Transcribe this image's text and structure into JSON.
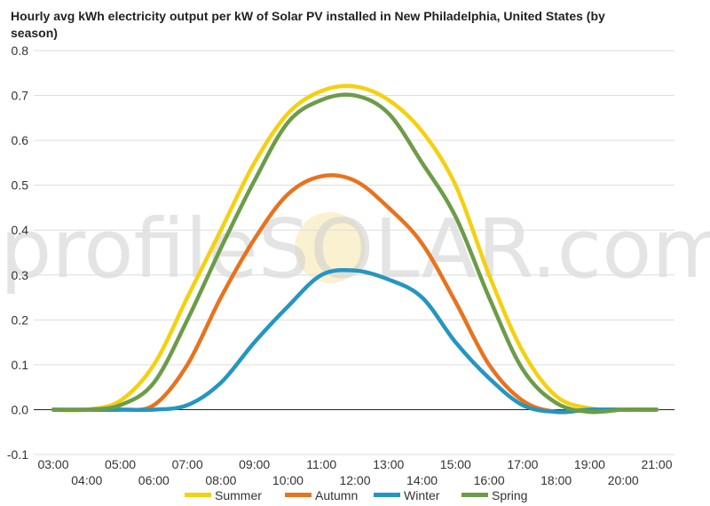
{
  "chart_data": {
    "type": "line",
    "title_line1": "Hourly avg kWh electricity output per kW of Solar PV installed in New Philadelphia, United States (by",
    "title_line2": "season)",
    "x": [
      "03:00",
      "04:00",
      "05:00",
      "06:00",
      "07:00",
      "08:00",
      "09:00",
      "10:00",
      "11:00",
      "12:00",
      "13:00",
      "14:00",
      "15:00",
      "16:00",
      "17:00",
      "18:00",
      "19:00",
      "20:00",
      "21:00"
    ],
    "ylim": [
      -0.1,
      0.8
    ],
    "yticks": [
      "0.8",
      "0.7",
      "0.6",
      "0.5",
      "0.4",
      "0.3",
      "0.2",
      "0.1",
      "0.0",
      "-0.1"
    ],
    "series": [
      {
        "name": "Summer",
        "color": "#f5d00f",
        "values": [
          0,
          0,
          0.02,
          0.1,
          0.25,
          0.4,
          0.55,
          0.66,
          0.71,
          0.72,
          0.69,
          0.62,
          0.5,
          0.3,
          0.13,
          0.03,
          0.003,
          0,
          0
        ]
      },
      {
        "name": "Autumn",
        "color": "#e8731f",
        "values": [
          0,
          0,
          0,
          0.01,
          0.1,
          0.25,
          0.38,
          0.48,
          0.52,
          0.51,
          0.45,
          0.37,
          0.24,
          0.1,
          0.02,
          -0.005,
          0,
          0,
          0
        ]
      },
      {
        "name": "Winter",
        "color": "#2596c1",
        "values": [
          0,
          0,
          0,
          0,
          0.01,
          0.06,
          0.15,
          0.23,
          0.3,
          0.31,
          0.29,
          0.25,
          0.15,
          0.07,
          0.01,
          -0.005,
          0,
          0,
          0
        ]
      },
      {
        "name": "Spring",
        "color": "#6c9c48",
        "values": [
          0,
          0,
          0.01,
          0.06,
          0.2,
          0.36,
          0.51,
          0.64,
          0.69,
          0.7,
          0.66,
          0.55,
          0.43,
          0.25,
          0.09,
          0.015,
          -0.005,
          0,
          0
        ]
      }
    ],
    "legend_position": "bottom",
    "watermark": "profileSOLAR.com"
  }
}
